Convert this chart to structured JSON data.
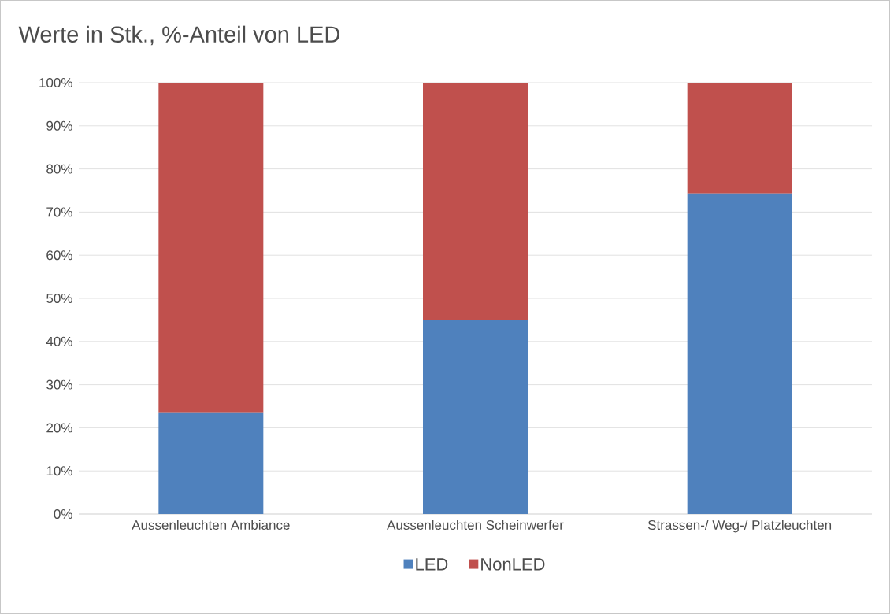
{
  "chart_data": {
    "type": "bar",
    "title": "Werte in Stk., %-Anteil von LED",
    "stacked": true,
    "categories": [
      "Aussenleuchten Ambiance",
      "Aussenleuchten Scheinwerfer",
      "Strassen-/ Weg-/ Platzleuchten"
    ],
    "series": [
      {
        "name": "LED",
        "color": "#4f81bd",
        "values": [
          23.4,
          44.9,
          74.3
        ]
      },
      {
        "name": "NonLED",
        "color": "#c0504d",
        "values": [
          76.6,
          55.1,
          25.7
        ]
      }
    ],
    "ylim": [
      0,
      100
    ],
    "yticks": [
      {
        "value": 0,
        "label": "0%"
      },
      {
        "value": 10,
        "label": "10%"
      },
      {
        "value": 20,
        "label": "20%"
      },
      {
        "value": 30,
        "label": "30%"
      },
      {
        "value": 40,
        "label": "40%"
      },
      {
        "value": 50,
        "label": "50%"
      },
      {
        "value": 60,
        "label": "60%"
      },
      {
        "value": 70,
        "label": "70%"
      },
      {
        "value": 80,
        "label": "80%"
      },
      {
        "value": 90,
        "label": "90%"
      },
      {
        "value": 100,
        "label": "100%"
      }
    ],
    "grid": "y",
    "legend": "bottom"
  }
}
